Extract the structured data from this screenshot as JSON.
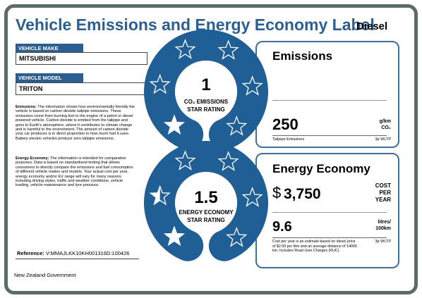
{
  "header": {
    "title": "Vehicle Emissions and Energy Economy Label",
    "fuel": "Diesel"
  },
  "vehicle": {
    "make_label": "VEHICLE MAKE",
    "make": "MITSUBISHI",
    "model_label": "VEHICLE MODEL",
    "model": "TRITON"
  },
  "notes": [
    {
      "label": "Emissions:",
      "text": "The information shows how environmentally friendly the vehicle is based on carbon dioxide tailpipe emissions. These emissions come from burning fuel in the engine of a petrol or diesel powered vehicle. Carbon dioxide is emitted from the tailpipe and goes to Earth's atmosphere, where it contributes to climate change and is harmful to the environment. The amount of carbon dioxide your car produces is in direct proportion to how much fuel it uses. Battery electric vehicles produce zero tailpipe emissions."
    },
    {
      "label": "Energy Economy:",
      "text": "The information is intended for comparative purposes. Data is based on standardised testing that allows consumers to directly compare the emissions and fuel consumption of different vehicle makes and models. Your actual cost per year, energy economy and/or EV range will vary for many reasons including driving styles, traffic and weather conditions, vehicle loading, vehicle maintenance and tyre pressure."
    }
  ],
  "reference": {
    "label": "Reference:",
    "value": "V:MMAJLKK10KH001316D:100426"
  },
  "footer": "New Zealand Government",
  "emissions": {
    "rating": 1,
    "rating_label_1": "CO₂ EMISSIONS",
    "rating_label_2": "STAR RATING",
    "title": "Emissions",
    "value": "250",
    "unit_1": "g/km",
    "unit_2": "CO₂",
    "caption": "Tailpipe Emissions",
    "standard": "3p WLTP"
  },
  "energy": {
    "rating": 1.5,
    "rating_label_1": "ENERGY ECONOMY",
    "rating_label_2": "STAR RATING",
    "title": "Energy Economy",
    "currency": "$",
    "cost": "3,750",
    "cost_unit": "COST PER YEAR",
    "economy": "9.6",
    "economy_unit": "litres/ 100km",
    "note": "Cost per year is an estimate based on diesel price of  $2.00 per litre and an average distance of 14000 km. Includes Road User Charges (RUC).",
    "standard": "3p WLTP"
  }
}
